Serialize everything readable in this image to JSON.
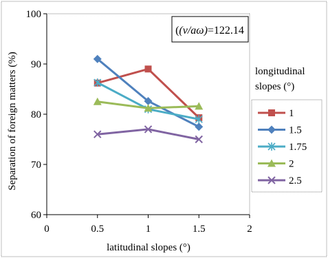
{
  "chart_data": {
    "type": "line",
    "xlabel": "latitudinal slopes (°)",
    "ylabel": "Separation of foreign matters (%)",
    "annotation": {
      "prefix": "(v/aω)",
      "value": "=122.14"
    },
    "xlim": [
      0,
      2
    ],
    "ylim": [
      60,
      100
    ],
    "x_ticks": [
      0,
      0.5,
      1,
      1.5,
      2
    ],
    "y_ticks": [
      60,
      70,
      80,
      90,
      100
    ],
    "x_tick_labels": [
      "0",
      "0.5",
      "1",
      "1.5",
      "2"
    ],
    "y_tick_labels": [
      "60",
      "70",
      "80",
      "90",
      "100"
    ],
    "grid": false,
    "legend": {
      "title_lines": [
        "longitudinal",
        "slopes (°)"
      ],
      "placement": "right"
    },
    "x": [
      0.5,
      1,
      1.5
    ],
    "series": [
      {
        "name": "1",
        "values": [
          86.2,
          89.0,
          79.3
        ],
        "color": "#C0504D",
        "marker": "square"
      },
      {
        "name": "1.5",
        "values": [
          91.0,
          82.6,
          77.5
        ],
        "color": "#4F81BD",
        "marker": "diamond"
      },
      {
        "name": "1.75",
        "values": [
          86.3,
          81.0,
          79.0
        ],
        "color": "#4BACC6",
        "marker": "asterisk"
      },
      {
        "name": "2",
        "values": [
          82.5,
          81.2,
          81.6
        ],
        "color": "#9BBB59",
        "marker": "triangle"
      },
      {
        "name": "2.5",
        "values": [
          76.0,
          77.0,
          75.0
        ],
        "color": "#8064A2",
        "marker": "x"
      }
    ]
  }
}
